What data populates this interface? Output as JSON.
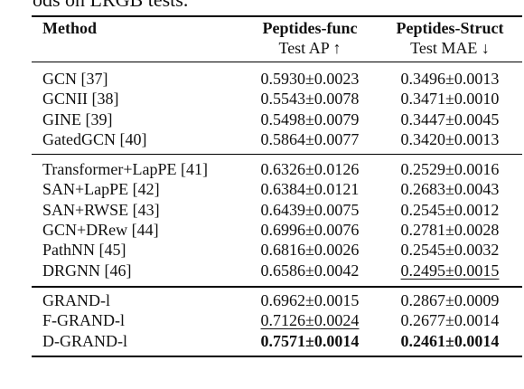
{
  "header": {
    "caption_fragment": "ods on LRGB tests."
  },
  "table": {
    "columns": [
      "Method",
      "Peptides-func",
      "Peptides-Struct"
    ],
    "column_subtitles": [
      "Test AP ↑",
      "Test MAE ↓"
    ],
    "groups": [
      {
        "rows": [
          {
            "method": "GCN [37]",
            "func": "0.5930±0.0023",
            "struct": "0.3496±0.0013"
          },
          {
            "method": "GCNII [38]",
            "func": "0.5543±0.0078",
            "struct": "0.3471±0.0010"
          },
          {
            "method": "GINE [39]",
            "func": "0.5498±0.0079",
            "struct": "0.3447±0.0045"
          },
          {
            "method": "GatedGCN [40]",
            "func": "0.5864±0.0077",
            "struct": "0.3420±0.0013"
          }
        ]
      },
      {
        "rows": [
          {
            "method": "Transformer+LapPE [41]",
            "func": "0.6326±0.0126",
            "struct": "0.2529±0.0016"
          },
          {
            "method": "SAN+LapPE [42]",
            "func": "0.6384±0.0121",
            "struct": "0.2683±0.0043"
          },
          {
            "method": "SAN+RWSE [43]",
            "func": "0.6439±0.0075",
            "struct": "0.2545±0.0012"
          },
          {
            "method": "GCN+DRew [44]",
            "func": "0.6996±0.0076",
            "struct": "0.2781±0.0028"
          },
          {
            "method": "PathNN [45]",
            "func": "0.6816±0.0026",
            "struct": "0.2545±0.0032"
          },
          {
            "method": "DRGNN [46]",
            "func": "0.6586±0.0042",
            "struct": "0.2495±0.0015",
            "struct_style": "underline"
          }
        ]
      },
      {
        "rows": [
          {
            "method": "GRAND-l",
            "func": "0.6962±0.0015",
            "struct": "0.2867±0.0009"
          },
          {
            "method": "F-GRAND-l",
            "func": "0.7126±0.0024",
            "struct": "0.2677±0.0014",
            "func_style": "underline"
          },
          {
            "method": "D-GRAND-l",
            "func": "0.7571±0.0014",
            "struct": "0.2461±0.0014",
            "func_style": "bold",
            "struct_style": "bold"
          }
        ]
      }
    ]
  }
}
